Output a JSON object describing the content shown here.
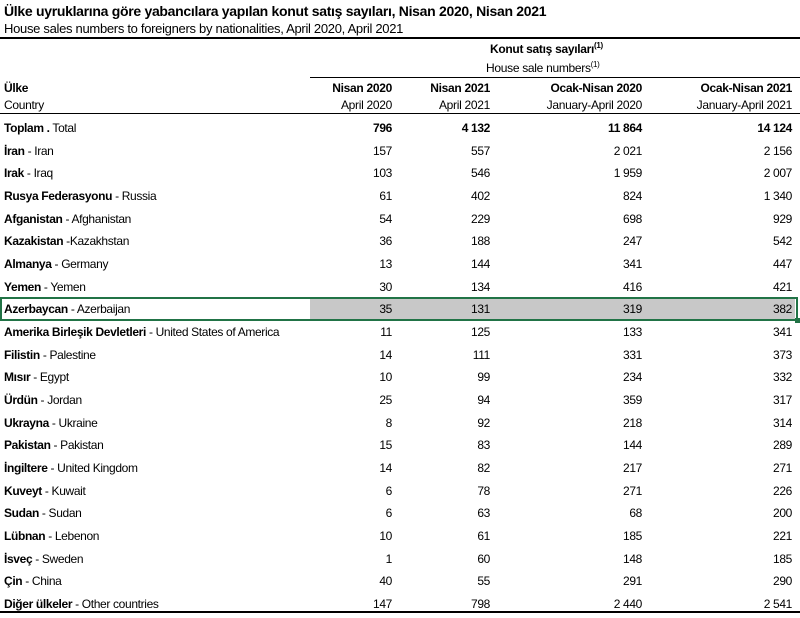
{
  "title": "Ülke uyruklarına göre yabancılara yapılan konut satış sayıları, Nisan 2020, Nisan 2021",
  "subtitle": "House sales numbers to foreigners by nationalities, April 2020, April 2021",
  "group_header": {
    "tr": "Konut satış sayıları",
    "en": "House sale numbers",
    "footnote": "(1)"
  },
  "country_header": {
    "tr": "Ülke",
    "en": "Country"
  },
  "columns": [
    {
      "tr": "Nisan 2020",
      "en": "April 2020"
    },
    {
      "tr": "Nisan 2021",
      "en": "April 2021"
    },
    {
      "tr": "Ocak-Nisan 2020",
      "en": "January-April 2020"
    },
    {
      "tr": "Ocak-Nisan 2021",
      "en": "January-April 2021"
    }
  ],
  "selection_color": "#217346",
  "selected_row": "Azerbaycan",
  "rows": [
    {
      "tr": "Toplam .",
      "en": " Total",
      "values": [
        "796",
        "4 132",
        "11 864",
        "14 124"
      ],
      "bold_values": true
    },
    {
      "tr": "İran",
      "en": " - Iran",
      "values": [
        "157",
        "557",
        "2 021",
        "2 156"
      ]
    },
    {
      "tr": "Irak",
      "en": " - Iraq",
      "values": [
        "103",
        "546",
        "1 959",
        "2 007"
      ]
    },
    {
      "tr": "Rusya Federasyonu",
      "en": " - Russia",
      "values": [
        "61",
        "402",
        "824",
        "1 340"
      ]
    },
    {
      "tr": "Afganistan",
      "en": " - Afghanistan",
      "values": [
        "54",
        "229",
        "698",
        "929"
      ]
    },
    {
      "tr": "Kazakistan",
      "en": " -Kazakhstan",
      "values": [
        "36",
        "188",
        "247",
        "542"
      ]
    },
    {
      "tr": "Almanya",
      "en": " - Germany",
      "values": [
        "13",
        "144",
        "341",
        "447"
      ]
    },
    {
      "tr": "Yemen",
      "en": " - Yemen",
      "values": [
        "30",
        "134",
        "416",
        "421"
      ]
    },
    {
      "tr": "Azerbaycan",
      "en": " - Azerbaijan",
      "values": [
        "35",
        "131",
        "319",
        "382"
      ],
      "selected": true
    },
    {
      "tr": "Amerika Birleşik Devletleri",
      "en": " - United States of America",
      "values": [
        "11",
        "125",
        "133",
        "341"
      ]
    },
    {
      "tr": "Filistin",
      "en": " - Palestine",
      "values": [
        "14",
        "111",
        "331",
        "373"
      ]
    },
    {
      "tr": "Mısır",
      "en": " - Egypt",
      "values": [
        "10",
        "99",
        "234",
        "332"
      ]
    },
    {
      "tr": "Ürdün",
      "en": " - Jordan",
      "values": [
        "25",
        "94",
        "359",
        "317"
      ]
    },
    {
      "tr": "Ukrayna",
      "en": " - Ukraine",
      "values": [
        "8",
        "92",
        "218",
        "314"
      ]
    },
    {
      "tr": "Pakistan",
      "en": " - Pakistan",
      "values": [
        "15",
        "83",
        "144",
        "289"
      ]
    },
    {
      "tr": "İngiltere",
      "en": " - United Kingdom",
      "values": [
        "14",
        "82",
        "217",
        "271"
      ]
    },
    {
      "tr": "Kuveyt",
      "en": " - Kuwait",
      "values": [
        "6",
        "78",
        "271",
        "226"
      ]
    },
    {
      "tr": "Sudan",
      "en": " - Sudan",
      "values": [
        "6",
        "63",
        "68",
        "200"
      ]
    },
    {
      "tr": "Lübnan",
      "en": " - Lebenon",
      "values": [
        "10",
        "61",
        "185",
        "221"
      ]
    },
    {
      "tr": "İsveç",
      "en": " - Sweden",
      "values": [
        "1",
        "60",
        "148",
        "185"
      ]
    },
    {
      "tr": "Çin",
      "en": " - China",
      "values": [
        "40",
        "55",
        "291",
        "290"
      ]
    },
    {
      "tr": "Diğer ülkeler",
      "en": " - Other countries",
      "values": [
        "147",
        "798",
        "2 440",
        "2 541"
      ]
    }
  ]
}
